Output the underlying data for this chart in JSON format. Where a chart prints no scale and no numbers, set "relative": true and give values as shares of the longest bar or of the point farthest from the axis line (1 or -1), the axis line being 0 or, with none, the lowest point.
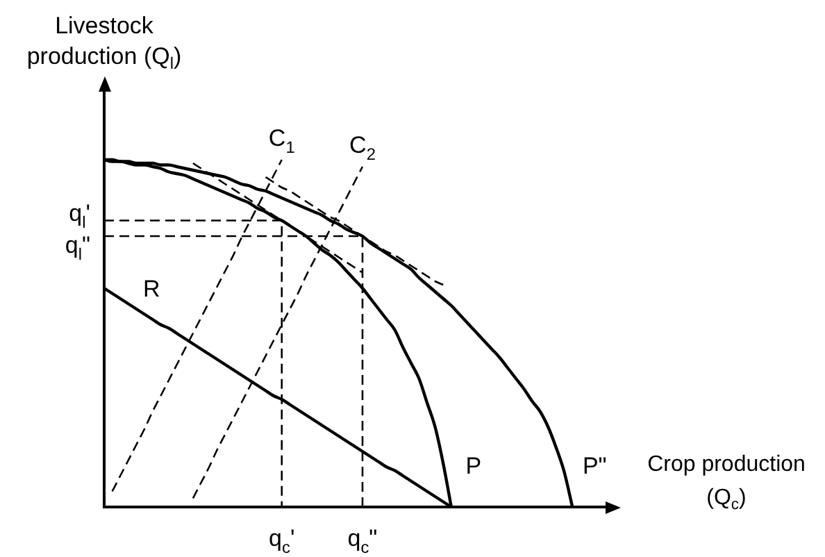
{
  "chart_data": {
    "type": "line",
    "relative": true,
    "marker": "none",
    "xlabel": "Crop production (Q$_{c}$)",
    "ylabel": "Livestock production (Q$_{l}$)",
    "categories": [
      null,
      null,
      null,
      null,
      null,
      null,
      null,
      null,
      null,
      null,
      null,
      null,
      null,
      null,
      null,
      null,
      null,
      null,
      null,
      null,
      null,
      null,
      "q$_{c}$'",
      null,
      null,
      null,
      null,
      null,
      null,
      null,
      null,
      null,
      "q$_{c}$\"",
      null,
      null,
      null,
      null,
      null,
      null,
      null,
      null,
      null,
      null,
      null,
      null,
      null,
      null,
      null,
      null,
      null,
      null,
      null,
      null,
      null,
      null,
      null,
      null,
      null,
      null,
      null,
      null,
      null,
      null,
      null,
      null
    ],
    "series": [
      {
        "name": "P",
        "color": "#000000",
        "line_style": "solid",
        "values": [
          1,
          0.995,
          0.995,
          0.99,
          0.985,
          0.985,
          0.98,
          0.975,
          0.965,
          0.96,
          0.955,
          0.945,
          0.935,
          0.925,
          0.915,
          0.905,
          0.895,
          0.885,
          0.875,
          0.86,
          0.85,
          0.835,
          0.825,
          0.81,
          0.795,
          0.78,
          0.76,
          0.74,
          0.725,
          0.705,
          0.68,
          0.655,
          0.63,
          0.6,
          0.57,
          0.54,
          0.51,
          0.46,
          0.415,
          0.37,
          0.3,
          0.23,
          0.125,
          0,
          null,
          null,
          null,
          null,
          null,
          null,
          null,
          null,
          null,
          null,
          null,
          null,
          null,
          null,
          null,
          null,
          null,
          null,
          null,
          null,
          null
        ]
      },
      {
        "name": "P\"",
        "color": "#000000",
        "line_style": "solid",
        "values": [
          1,
          1,
          0.995,
          0.995,
          0.99,
          0.99,
          0.99,
          0.985,
          0.985,
          0.98,
          0.975,
          0.97,
          0.965,
          0.96,
          0.955,
          0.95,
          0.94,
          0.93,
          0.925,
          0.915,
          0.91,
          0.9,
          0.89,
          0.88,
          0.87,
          0.86,
          0.85,
          0.84,
          0.825,
          0.815,
          0.8,
          0.79,
          0.78,
          0.76,
          0.745,
          0.73,
          0.715,
          0.7,
          0.685,
          0.66,
          0.64,
          0.62,
          0.6,
          0.58,
          0.555,
          0.53,
          0.505,
          0.48,
          0.455,
          0.43,
          0.4,
          0.37,
          0.34,
          0.305,
          0.275,
          0.23,
          0.17,
          0.1,
          0,
          null,
          null,
          null,
          null,
          null,
          null
        ]
      },
      {
        "name": "R",
        "color": "#000000",
        "line_style": "solid",
        "values": [
          0.63,
          0.615,
          0.6,
          0.585,
          0.57,
          0.555,
          0.54,
          0.525,
          0.515,
          0.5,
          0.485,
          0.47,
          0.455,
          0.44,
          0.425,
          0.41,
          0.395,
          0.38,
          0.365,
          0.35,
          0.335,
          0.32,
          0.31,
          0.295,
          0.28,
          0.265,
          0.25,
          0.235,
          0.22,
          0.205,
          0.19,
          0.175,
          0.16,
          0.145,
          0.13,
          0.115,
          0.105,
          0.09,
          0.075,
          0.06,
          0.045,
          0.03,
          0.015,
          0,
          null,
          null,
          null,
          null,
          null,
          null,
          null,
          null,
          null,
          null,
          null,
          null,
          null,
          null,
          null,
          null,
          null,
          null,
          null,
          null,
          null
        ]
      },
      {
        "name": "C$_{1}$",
        "color": "#000000",
        "line_style": "dashed",
        "values": [
          null,
          0.045,
          0.09,
          0.135,
          0.18,
          0.225,
          0.275,
          0.32,
          0.365,
          0.41,
          0.455,
          0.5,
          0.545,
          0.59,
          0.635,
          0.68,
          0.725,
          0.775,
          0.82,
          0.865,
          0.91,
          0.955,
          1,
          null,
          null,
          null,
          null,
          null,
          null,
          null,
          null,
          null,
          null,
          null,
          null,
          null,
          null,
          null,
          null,
          null,
          null,
          null,
          null,
          null,
          null,
          null,
          null,
          null,
          null,
          null,
          null,
          null,
          null,
          null,
          null,
          null,
          null,
          null,
          null,
          null,
          null,
          null,
          null,
          null,
          null
        ]
      },
      {
        "name": "C$_{2}$",
        "color": "#000000",
        "line_style": "dashed",
        "values": [
          null,
          null,
          null,
          null,
          null,
          null,
          null,
          null,
          null,
          null,
          null,
          0.025,
          0.07,
          0.115,
          0.165,
          0.21,
          0.255,
          0.3,
          0.345,
          0.39,
          0.435,
          0.48,
          0.525,
          0.57,
          0.615,
          0.665,
          0.71,
          0.755,
          0.8,
          0.845,
          0.89,
          0.935,
          0.98,
          null,
          null,
          null,
          null,
          null,
          null,
          null,
          null,
          null,
          null,
          null,
          null,
          null,
          null,
          null,
          null,
          null,
          null,
          null,
          null,
          null,
          null,
          null,
          null,
          null,
          null,
          null,
          null,
          null,
          null,
          null,
          null
        ]
      },
      {
        "color": "#000000",
        "line_style": "dashed",
        "values": [
          null,
          null,
          null,
          null,
          null,
          null,
          null,
          null,
          null,
          null,
          null,
          0.99,
          0.975,
          0.96,
          0.945,
          0.93,
          0.915,
          0.9,
          0.885,
          0.87,
          0.855,
          0.84,
          0.825,
          0.81,
          0.795,
          0.78,
          0.765,
          0.75,
          0.735,
          0.72,
          0.705,
          0.69,
          0.675,
          null,
          null,
          null,
          null,
          null,
          null,
          null,
          null,
          null,
          null,
          null,
          null,
          null,
          null,
          null,
          null,
          null,
          null,
          null,
          null,
          null,
          null,
          null,
          null,
          null,
          null,
          null,
          null,
          null,
          null,
          null,
          null
        ]
      },
      {
        "color": "#000000",
        "line_style": "dashed",
        "values": [
          null,
          null,
          null,
          null,
          null,
          null,
          null,
          null,
          null,
          null,
          null,
          null,
          null,
          null,
          null,
          null,
          null,
          null,
          null,
          null,
          0.95,
          0.935,
          0.92,
          0.91,
          0.895,
          0.88,
          0.865,
          0.85,
          0.835,
          0.825,
          0.81,
          0.795,
          0.78,
          0.765,
          0.75,
          0.735,
          0.725,
          0.71,
          0.695,
          0.68,
          0.665,
          0.65,
          0.64,
          null,
          null,
          null,
          null,
          null,
          null,
          null,
          null,
          null,
          null,
          null,
          null,
          null,
          null,
          null,
          null,
          null,
          null,
          null,
          null,
          null,
          null
        ]
      },
      {
        "name": "q$_{l}$'",
        "type": "step",
        "color": "#000000",
        "line_style": "dashed",
        "values": [
          0.825,
          0.825,
          0.825,
          0.825,
          0.825,
          0.825,
          0.825,
          0.825,
          0.825,
          0.825,
          0.825,
          0.825,
          0.825,
          0.825,
          0.825,
          0.825,
          0.825,
          0.825,
          0.825,
          0.825,
          0.825,
          0.825,
          0,
          null,
          null,
          null,
          null,
          null,
          null,
          null,
          null,
          null,
          null,
          null,
          null,
          null,
          null,
          null,
          null,
          null,
          null,
          null,
          null,
          null,
          null,
          null,
          null,
          null,
          null,
          null,
          null,
          null,
          null,
          null,
          null,
          null,
          null,
          null,
          null,
          null,
          null,
          null,
          null,
          null,
          null
        ]
      },
      {
        "name": "q$_{l}$\"",
        "type": "step",
        "color": "#000000",
        "line_style": "dashed",
        "values": [
          0.78,
          0.78,
          0.78,
          0.78,
          0.78,
          0.78,
          0.78,
          0.78,
          0.78,
          0.78,
          0.78,
          0.78,
          0.78,
          0.78,
          0.78,
          0.78,
          0.78,
          0.78,
          0.78,
          0.78,
          0.78,
          0.78,
          0.78,
          0.78,
          0.78,
          0.78,
          0.78,
          0.78,
          0.78,
          0.78,
          0.78,
          0.78,
          0,
          null,
          null,
          null,
          null,
          null,
          null,
          null,
          null,
          null,
          null,
          null,
          null,
          null,
          null,
          null,
          null,
          null,
          null,
          null,
          null,
          null,
          null,
          null,
          null,
          null,
          null,
          null,
          null,
          null,
          null,
          null,
          null
        ]
      }
    ]
  }
}
